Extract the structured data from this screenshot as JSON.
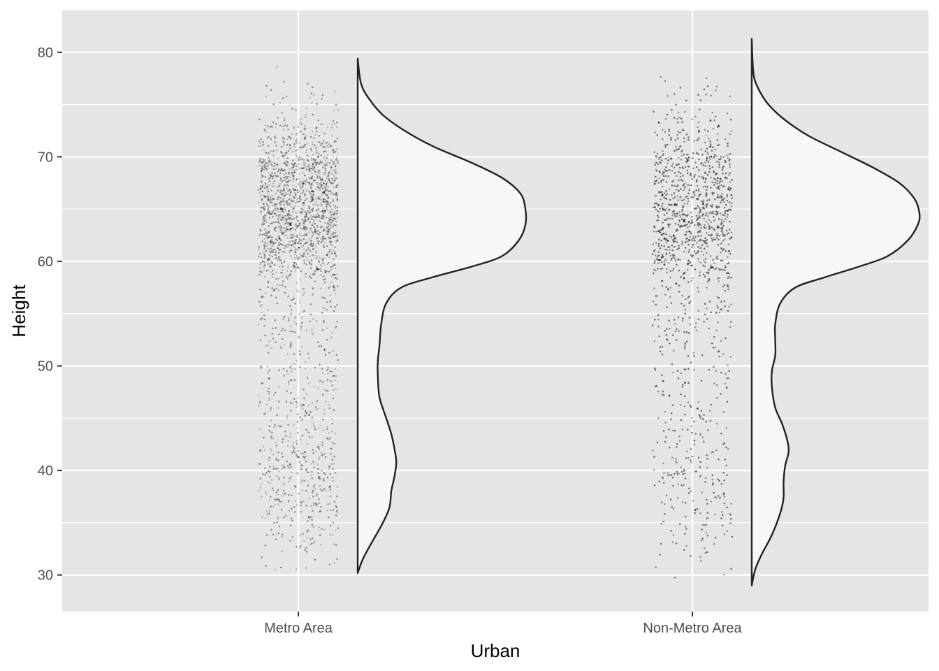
{
  "chart_data": {
    "type": "raincloud",
    "title": "",
    "xlabel": "Urban",
    "ylabel": "Height",
    "categories": [
      "Metro Area",
      "Non-Metro Area"
    ],
    "ylim": [
      26.5,
      84
    ],
    "y_ticks": [
      30,
      40,
      50,
      60,
      70,
      80
    ],
    "grid": true,
    "colors": {
      "panel": "#e5e5e5",
      "grid": "#ffffff",
      "points": "#000000",
      "density_fill": "#f7f7f7",
      "density_line": "#222222"
    },
    "series": [
      {
        "category": "Metro Area",
        "y_range": [
          30.2,
          79.4
        ],
        "density_peak_y": 65.0,
        "density": [
          [
            30.2,
            0.0
          ],
          [
            31.5,
            0.03
          ],
          [
            33,
            0.08
          ],
          [
            35,
            0.15
          ],
          [
            36.5,
            0.19
          ],
          [
            38,
            0.2
          ],
          [
            39.5,
            0.22
          ],
          [
            40.8,
            0.23
          ],
          [
            42,
            0.22
          ],
          [
            43.5,
            0.2
          ],
          [
            45,
            0.17
          ],
          [
            47,
            0.13
          ],
          [
            49,
            0.12
          ],
          [
            50.5,
            0.12
          ],
          [
            52,
            0.13
          ],
          [
            54,
            0.14
          ],
          [
            56,
            0.17
          ],
          [
            57.5,
            0.26
          ],
          [
            58.5,
            0.45
          ],
          [
            59.5,
            0.68
          ],
          [
            60.5,
            0.86
          ],
          [
            62,
            0.96
          ],
          [
            63.5,
            1.0
          ],
          [
            65,
            1.0
          ],
          [
            66.5,
            0.97
          ],
          [
            68,
            0.86
          ],
          [
            69.5,
            0.67
          ],
          [
            71,
            0.45
          ],
          [
            72.5,
            0.28
          ],
          [
            74,
            0.15
          ],
          [
            75.5,
            0.07
          ],
          [
            77,
            0.02
          ],
          [
            79.4,
            0.0
          ]
        ],
        "points_shape": [
          [
            30,
            0.02
          ],
          [
            32,
            0.12
          ],
          [
            34,
            0.4
          ],
          [
            36,
            0.7
          ],
          [
            38,
            0.75
          ],
          [
            40,
            0.75
          ],
          [
            42,
            0.72
          ],
          [
            44,
            0.6
          ],
          [
            46,
            0.45
          ],
          [
            48,
            0.36
          ],
          [
            50,
            0.34
          ],
          [
            52,
            0.35
          ],
          [
            54,
            0.38
          ],
          [
            56,
            0.45
          ],
          [
            58,
            0.8
          ],
          [
            60,
            1.8
          ],
          [
            62,
            2.6
          ],
          [
            64,
            2.9
          ],
          [
            66,
            2.9
          ],
          [
            68,
            2.4
          ],
          [
            70,
            1.6
          ],
          [
            72,
            0.9
          ],
          [
            74,
            0.35
          ],
          [
            76,
            0.1
          ],
          [
            78,
            0.02
          ],
          [
            80,
            0.0
          ]
        ]
      },
      {
        "category": "Non-Metro Area",
        "y_range": [
          29.0,
          81.3
        ],
        "density_peak_y": 64.6,
        "density": [
          [
            29.0,
            0.0
          ],
          [
            30.5,
            0.02
          ],
          [
            32,
            0.06
          ],
          [
            33.5,
            0.11
          ],
          [
            35,
            0.15
          ],
          [
            36.5,
            0.18
          ],
          [
            37.5,
            0.19
          ],
          [
            39,
            0.19
          ],
          [
            40.5,
            0.2
          ],
          [
            41.8,
            0.22
          ],
          [
            43,
            0.21
          ],
          [
            44.5,
            0.18
          ],
          [
            46,
            0.14
          ],
          [
            48,
            0.12
          ],
          [
            49.5,
            0.12
          ],
          [
            51,
            0.14
          ],
          [
            52.5,
            0.14
          ],
          [
            54,
            0.14
          ],
          [
            56,
            0.17
          ],
          [
            57.5,
            0.26
          ],
          [
            58.5,
            0.44
          ],
          [
            59.5,
            0.64
          ],
          [
            60.5,
            0.81
          ],
          [
            62,
            0.93
          ],
          [
            63.5,
            0.99
          ],
          [
            64.6,
            1.0
          ],
          [
            66,
            0.97
          ],
          [
            67.5,
            0.88
          ],
          [
            69,
            0.72
          ],
          [
            70.5,
            0.53
          ],
          [
            72,
            0.34
          ],
          [
            73.5,
            0.2
          ],
          [
            75,
            0.1
          ],
          [
            76.5,
            0.04
          ],
          [
            78,
            0.01
          ],
          [
            81.3,
            0.0
          ]
        ],
        "points_shape": [
          [
            29,
            0.02
          ],
          [
            31,
            0.06
          ],
          [
            33,
            0.3
          ],
          [
            35,
            0.55
          ],
          [
            37,
            0.6
          ],
          [
            39,
            0.55
          ],
          [
            41,
            0.6
          ],
          [
            43,
            0.62
          ],
          [
            45,
            0.5
          ],
          [
            47,
            0.4
          ],
          [
            49,
            0.38
          ],
          [
            51,
            0.42
          ],
          [
            53,
            0.45
          ],
          [
            55,
            0.5
          ],
          [
            57,
            0.7
          ],
          [
            59,
            1.4
          ],
          [
            61,
            2.4
          ],
          [
            63,
            2.9
          ],
          [
            65,
            3.0
          ],
          [
            67,
            2.6
          ],
          [
            69,
            1.9
          ],
          [
            71,
            1.2
          ],
          [
            73,
            0.6
          ],
          [
            75,
            0.25
          ],
          [
            77,
            0.06
          ],
          [
            79,
            0.01
          ],
          [
            81,
            0.0
          ]
        ]
      }
    ]
  }
}
